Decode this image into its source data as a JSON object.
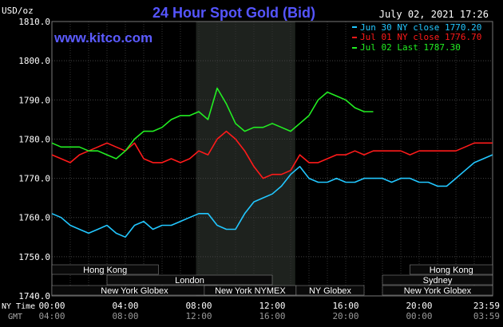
{
  "chart_data": {
    "type": "line",
    "title": "24 Hour Spot Gold (Bid)",
    "watermark": "www.kitco.com",
    "timestamp": "July 02, 2021 17:26",
    "yunit": "USD/oz",
    "ylim": [
      1740.0,
      1810.0
    ],
    "yticks": [
      "1740.0",
      "1750.0",
      "1760.0",
      "1770.0",
      "1780.0",
      "1790.0",
      "1800.0",
      "1810.0"
    ],
    "xlim": [
      0,
      24
    ],
    "xticks_ny": [
      "00:00",
      "04:00",
      "08:00",
      "12:00",
      "16:00",
      "20:00",
      "23:59"
    ],
    "xticks_gmt": [
      "04:00",
      "08:00",
      "12:00",
      "16:00",
      "20:00",
      "00:00",
      "03:59"
    ],
    "row_label_ny": "NY Time",
    "row_label_gmt": "GMT",
    "grid": true,
    "shaded_region_x": [
      7.85,
      13.25
    ],
    "legend_position": "top-right",
    "series": [
      {
        "name": "Jun 30 NY close 1770.20",
        "color": "#22c7ff",
        "x": [
          0,
          0.5,
          1,
          1.5,
          2,
          2.5,
          3,
          3.5,
          4,
          4.5,
          5,
          5.5,
          6,
          6.5,
          7,
          7.5,
          8,
          8.5,
          9,
          9.5,
          10,
          10.5,
          11,
          11.5,
          12,
          12.5,
          13,
          13.5,
          14,
          14.5,
          15,
          15.5,
          16,
          16.5,
          17,
          17.5,
          18,
          18.5,
          19,
          19.5,
          20,
          20.5,
          21,
          21.5,
          22,
          22.5,
          23,
          23.5,
          23.99
        ],
        "values": [
          1761,
          1760,
          1758,
          1757,
          1756,
          1757,
          1758,
          1756,
          1755,
          1758,
          1759,
          1757,
          1758,
          1758,
          1759,
          1760,
          1761,
          1761,
          1758,
          1757,
          1757,
          1761,
          1764,
          1765,
          1766,
          1768,
          1771,
          1773,
          1770,
          1769,
          1769,
          1770,
          1769,
          1769,
          1770,
          1770,
          1770,
          1769,
          1770,
          1770,
          1769,
          1769,
          1768,
          1768,
          1770,
          1772,
          1774,
          1775,
          1776
        ]
      },
      {
        "name": "Jul 01 NY close 1776.70",
        "color": "#ff1a1a",
        "x": [
          0,
          0.5,
          1,
          1.5,
          2,
          2.5,
          3,
          3.5,
          4,
          4.5,
          5,
          5.5,
          6,
          6.5,
          7,
          7.5,
          8,
          8.5,
          9,
          9.5,
          10,
          10.5,
          11,
          11.5,
          12,
          12.5,
          13,
          13.5,
          14,
          14.5,
          15,
          15.5,
          16,
          16.5,
          17,
          17.5,
          18,
          18.5,
          19,
          19.5,
          20,
          20.5,
          21,
          21.5,
          22,
          22.5,
          23,
          23.5,
          23.99
        ],
        "values": [
          1776,
          1775,
          1774,
          1776,
          1777,
          1778,
          1779,
          1778,
          1777,
          1779,
          1775,
          1774,
          1774,
          1775,
          1774,
          1775,
          1777,
          1776,
          1780,
          1782,
          1780,
          1777,
          1773,
          1770,
          1771,
          1771,
          1772,
          1776,
          1774,
          1774,
          1775,
          1776,
          1776,
          1777,
          1776,
          1777,
          1777,
          1777,
          1777,
          1776,
          1777,
          1777,
          1777,
          1777,
          1777,
          1778,
          1779,
          1779,
          1779
        ]
      },
      {
        "name": "Jul 02 Last 1787.30",
        "color": "#22ee22",
        "x": [
          0,
          0.5,
          1,
          1.5,
          2,
          2.5,
          3,
          3.5,
          4,
          4.5,
          5,
          5.5,
          6,
          6.5,
          7,
          7.5,
          8,
          8.5,
          9,
          9.5,
          10,
          10.5,
          11,
          11.5,
          12,
          12.5,
          13,
          13.5,
          14,
          14.5,
          15,
          15.5,
          16,
          16.5,
          17,
          17.5
        ],
        "values": [
          1779,
          1778,
          1778,
          1778,
          1777,
          1777,
          1776,
          1775,
          1777,
          1780,
          1782,
          1782,
          1783,
          1785,
          1786,
          1786,
          1787,
          1785,
          1793,
          1789,
          1784,
          1782,
          1783,
          1783,
          1784,
          1783,
          1782,
          1784,
          1786,
          1790,
          1792,
          1791,
          1790,
          1788,
          1787,
          1787
        ]
      }
    ],
    "markets_left": [
      {
        "name": "Hong Kong",
        "start": 0,
        "end": 5.8
      },
      {
        "name": "London",
        "start": 3,
        "end": 12
      },
      {
        "name": "New York Globex",
        "start": 0,
        "end": 9
      },
      {
        "name": "New York NYMEX",
        "start": 8.3,
        "end": 13.3
      },
      {
        "name": "NY Globex",
        "start": 13.3,
        "end": 17
      }
    ],
    "markets_right": [
      {
        "name": "Hong Kong",
        "start": 19.5,
        "end": 24
      },
      {
        "name": "Sydney",
        "start": 18,
        "end": 24
      },
      {
        "name": "New York Globex",
        "start": 18,
        "end": 24
      }
    ]
  }
}
